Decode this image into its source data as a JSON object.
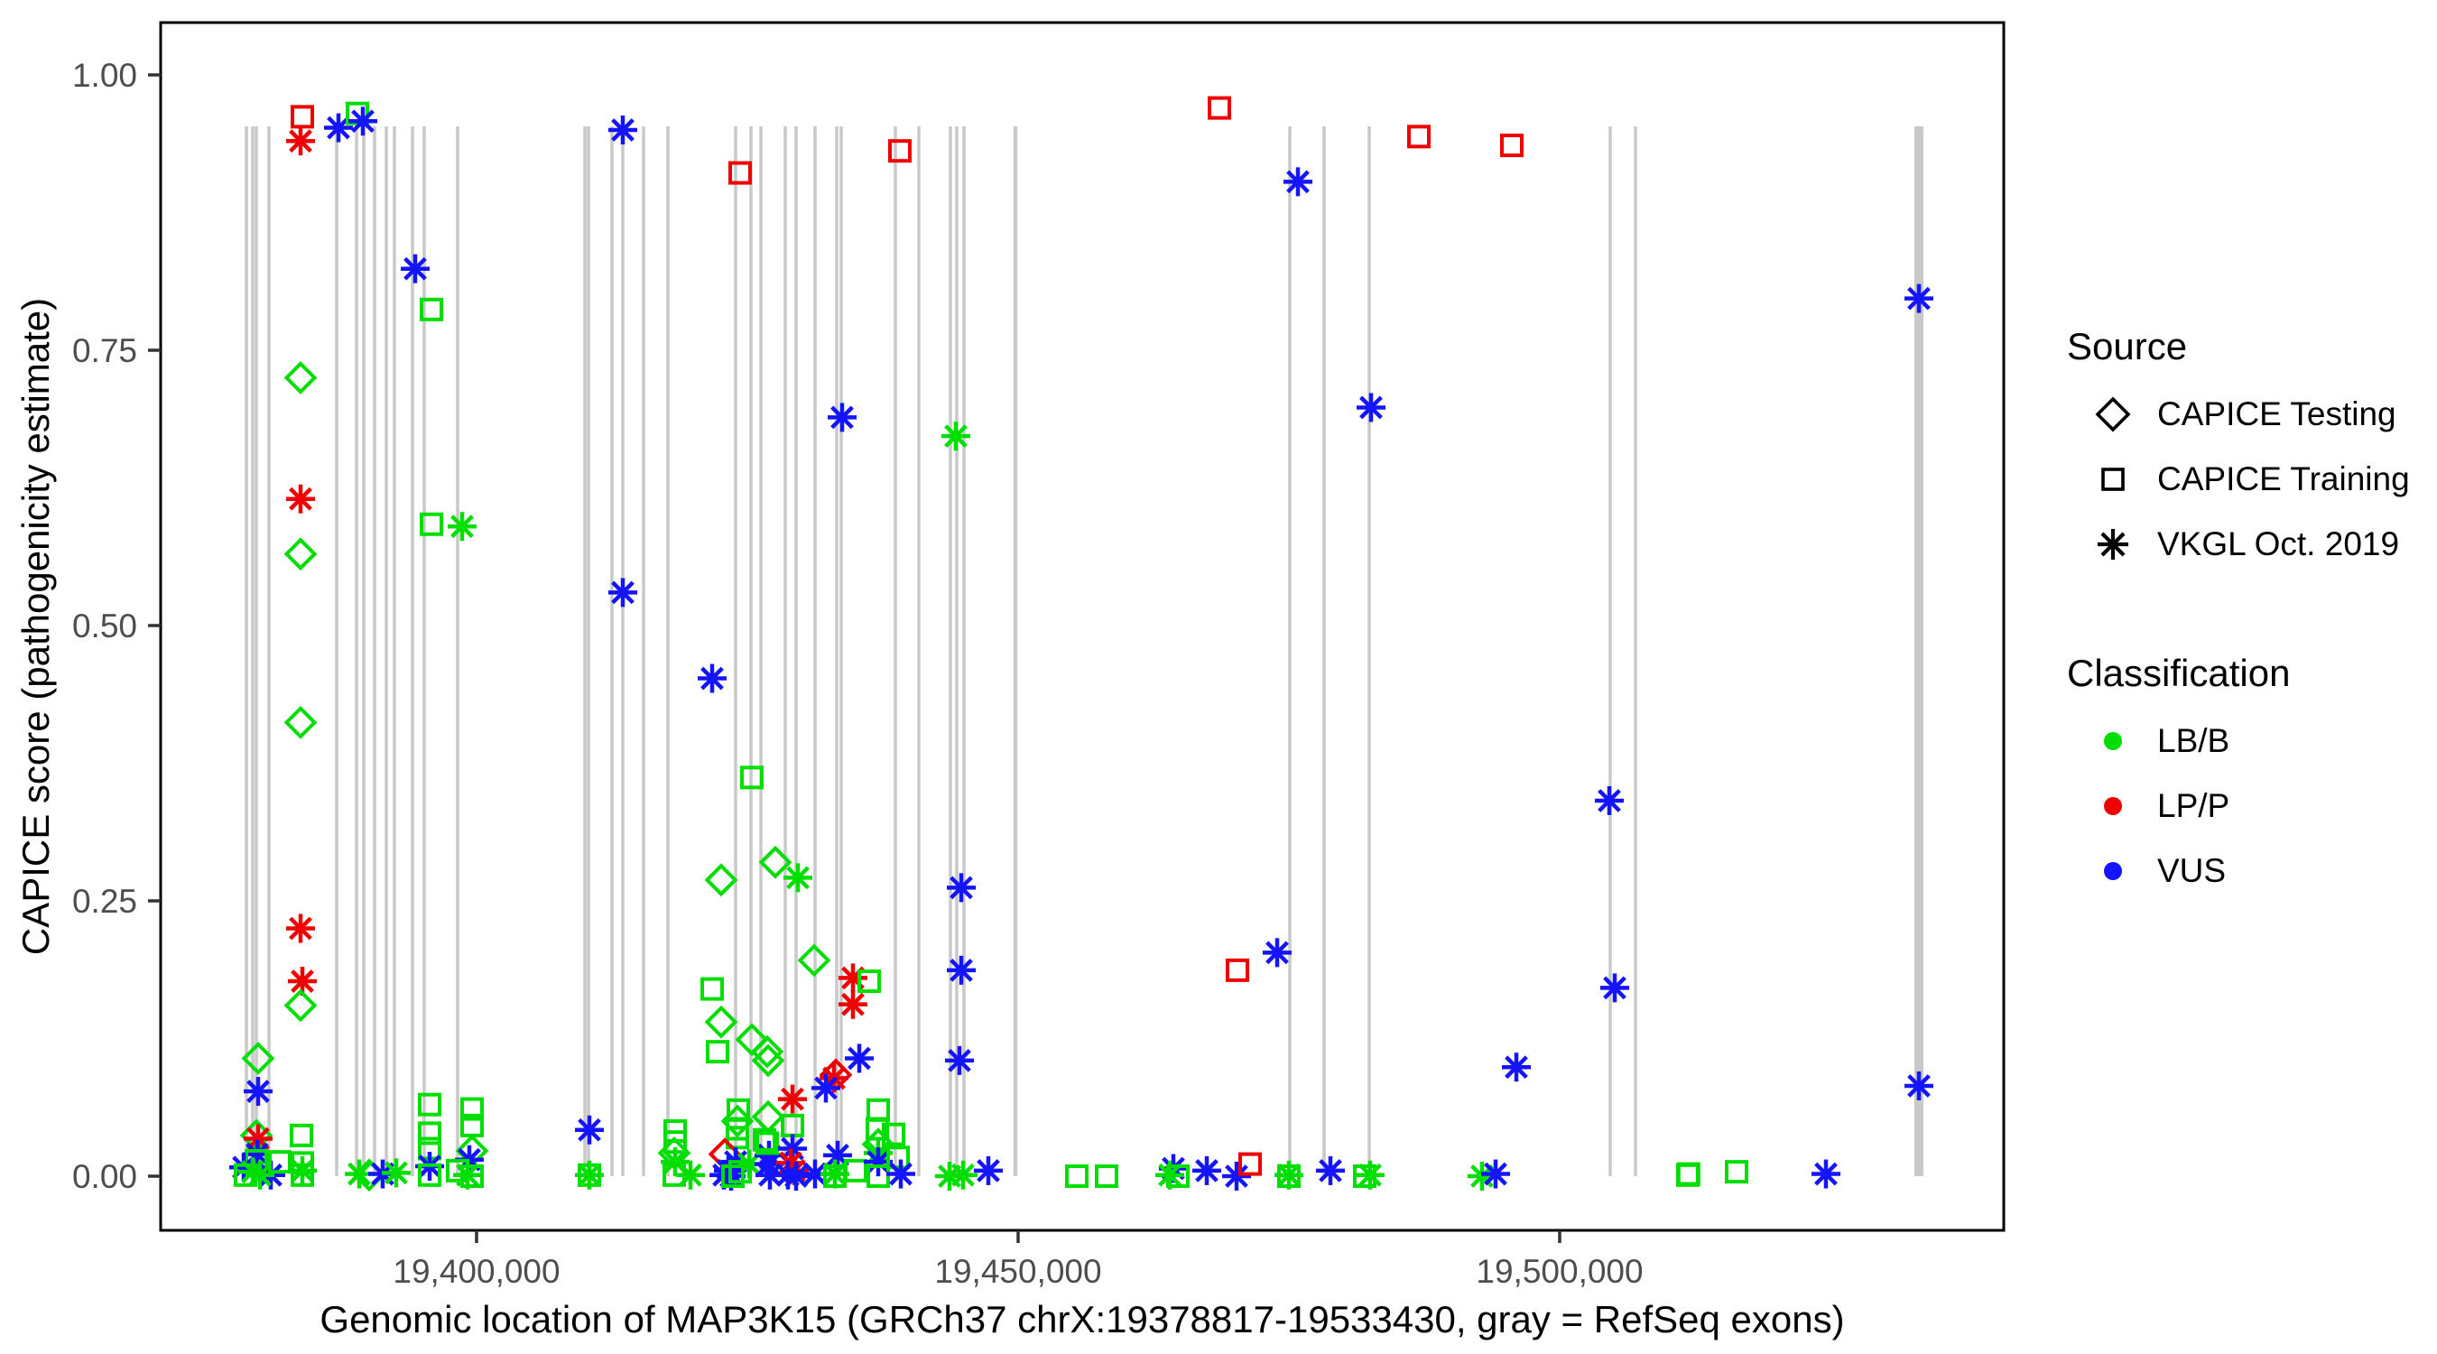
{
  "figure": {
    "background": "#ffffff"
  },
  "axes": {
    "x": {
      "title": "Genomic location of MAP3K15 (GRCh37 chrX:19378817-19533430, gray = RefSeq exons)",
      "ticks": [
        {
          "label": "19,400,000",
          "value": 19400000
        },
        {
          "label": "19,450,000",
          "value": 19450000
        },
        {
          "label": "19,500,000",
          "value": 19500000
        }
      ]
    },
    "y": {
      "title": "CAPICE score (pathogenicity estimate)",
      "ticks": [
        {
          "label": "0.00",
          "value": 0.0
        },
        {
          "label": "0.25",
          "value": 0.25
        },
        {
          "label": "0.50",
          "value": 0.5
        },
        {
          "label": "0.75",
          "value": 0.75
        },
        {
          "label": "1.00",
          "value": 1.0
        }
      ]
    }
  },
  "legend": {
    "source": {
      "title": "Source",
      "items": [
        {
          "label": "CAPICE Testing",
          "marker": "diamond"
        },
        {
          "label": "CAPICE Training",
          "marker": "square"
        },
        {
          "label": "VKGL Oct. 2019",
          "marker": "asterisk"
        }
      ]
    },
    "classification": {
      "title": "Classification",
      "items": [
        {
          "label": "LB/B",
          "color_key": "LB/B"
        },
        {
          "label": "LP/P",
          "color_key": "LP/P"
        },
        {
          "label": "VUS",
          "color_key": "VUS"
        }
      ]
    }
  },
  "colors": {
    "LB/B": "#00DE00",
    "LP/P": "#EE0000",
    "VUS": "#1414FF",
    "exon": "#C9C9C9",
    "tick_label": "#4D4D4D",
    "panel_border": "#000000"
  },
  "chart_data": {
    "type": "scatter",
    "title": "",
    "xlabel": "Genomic location of MAP3K15 (GRCh37 chrX:19378817-19533430, gray = RefSeq exons)",
    "ylabel": "CAPICE score (pathogenicity estimate)",
    "xlim": [
      19370800,
      19541000
    ],
    "ylim": [
      0,
      1
    ],
    "grid": false,
    "legend_position": "right",
    "marker_by_source": {
      "CAPICE Testing": "diamond",
      "CAPICE Training": "square",
      "VKGL Oct. 2019": "asterisk"
    },
    "source_codes": {
      "test": "CAPICE Testing",
      "train": "CAPICE Training",
      "vkgl": "VKGL Oct. 2019"
    },
    "exon_note": "gray vertical lines = RefSeq exons",
    "exons": [
      {
        "g": 19378750
      },
      {
        "g": 19379333
      },
      {
        "g": 19379667
      },
      {
        "g": 19380833
      },
      {
        "g": 19387083
      },
      {
        "g": 19388917
      },
      {
        "g": 19389583
      },
      {
        "g": 19390583
      },
      {
        "g": 19391667
      },
      {
        "g": 19392417
      },
      {
        "g": 19394083
      },
      {
        "g": 19395167
      },
      {
        "g": 19398250
      },
      {
        "g": 19410000
      },
      {
        "g": 19410333
      },
      {
        "g": 19412500
      },
      {
        "g": 19413500
      },
      {
        "g": 19415417
      },
      {
        "g": 19417667
      },
      {
        "g": 19423917
      },
      {
        "g": 19425333
      },
      {
        "g": 19426250
      },
      {
        "g": 19428500
      },
      {
        "g": 19429500
      },
      {
        "g": 19431250
      },
      {
        "g": 19433250
      },
      {
        "g": 19433667
      },
      {
        "g": 19438667
      },
      {
        "g": 19440833
      },
      {
        "g": 19443750
      },
      {
        "g": 19444333
      },
      {
        "g": 19445000
      },
      {
        "g": 19449750,
        "w": 4.5
      },
      {
        "g": 19475083
      },
      {
        "g": 19478250
      },
      {
        "g": 19482417
      },
      {
        "g": 19504667
      },
      {
        "g": 19507000
      },
      {
        "g": 19533167,
        "w": 10
      }
    ],
    "point_fields": [
      "source",
      "classification",
      "genomic_position",
      "capice_score"
    ],
    "points": [
      [
        "train",
        "LP/P",
        19383917,
        0.962
      ],
      [
        "vkgl",
        "LP/P",
        19383750,
        0.94
      ],
      [
        "vkgl",
        "VUS",
        19387250,
        0.952
      ],
      [
        "train",
        "LB/B",
        19389000,
        0.965
      ],
      [
        "vkgl",
        "VUS",
        19389500,
        0.958
      ],
      [
        "vkgl",
        "VUS",
        19394333,
        0.824
      ],
      [
        "train",
        "LB/B",
        19395833,
        0.787
      ],
      [
        "test",
        "LB/B",
        19383750,
        0.725
      ],
      [
        "vkgl",
        "LP/P",
        19383750,
        0.615
      ],
      [
        "test",
        "LB/B",
        19383750,
        0.565
      ],
      [
        "train",
        "LB/B",
        19395833,
        0.592
      ],
      [
        "vkgl",
        "LB/B",
        19398667,
        0.59
      ],
      [
        "test",
        "LB/B",
        19383750,
        0.412
      ],
      [
        "vkgl",
        "LP/P",
        19383750,
        0.225
      ],
      [
        "vkgl",
        "LP/P",
        19383917,
        0.177
      ],
      [
        "test",
        "LB/B",
        19383750,
        0.155
      ],
      [
        "test",
        "LB/B",
        19379833,
        0.107
      ],
      [
        "vkgl",
        "VUS",
        19379833,
        0.077
      ],
      [
        "test",
        "LB/B",
        19379667,
        0.037
      ],
      [
        "vkgl",
        "LP/P",
        19379833,
        0.034
      ],
      [
        "vkgl",
        "VUS",
        19379750,
        0.02
      ],
      [
        "train",
        "LB/B",
        19379667,
        0.014
      ],
      [
        "vkgl",
        "VUS",
        19378500,
        0.008
      ],
      [
        "vkgl",
        "LB/B",
        19379333,
        0.004
      ],
      [
        "vkgl",
        "VUS",
        19381000,
        0.001
      ],
      [
        "train",
        "LB/B",
        19378667,
        0.001
      ],
      [
        "vkgl",
        "LB/B",
        19380000,
        0.001
      ],
      [
        "train",
        "LB/B",
        19381833,
        0.013
      ],
      [
        "train",
        "LB/B",
        19383833,
        0.037
      ],
      [
        "train",
        "LB/B",
        19383917,
        0.012
      ],
      [
        "vkgl",
        "LB/B",
        19383917,
        0.005
      ],
      [
        "train",
        "LB/B",
        19383917,
        0.001
      ],
      [
        "vkgl",
        "LB/B",
        19389167,
        0.002
      ],
      [
        "test",
        "LB/B",
        19390083,
        0.001
      ],
      [
        "vkgl",
        "VUS",
        19391333,
        0.002
      ],
      [
        "vkgl",
        "LB/B",
        19392583,
        0.003
      ],
      [
        "train",
        "LB/B",
        19395667,
        0.065
      ],
      [
        "train",
        "LB/B",
        19395667,
        0.039
      ],
      [
        "train",
        "LB/B",
        19395667,
        0.025
      ],
      [
        "vkgl",
        "VUS",
        19395667,
        0.009
      ],
      [
        "train",
        "LB/B",
        19395667,
        0.001
      ],
      [
        "train",
        "LB/B",
        19399583,
        0.061
      ],
      [
        "train",
        "LB/B",
        19399583,
        0.046
      ],
      [
        "test",
        "LB/B",
        19399583,
        0.023
      ],
      [
        "vkgl",
        "VUS",
        19399333,
        0.015
      ],
      [
        "train",
        "LB/B",
        19398250,
        0.005
      ],
      [
        "vkgl",
        "LB/B",
        19399167,
        0.001
      ],
      [
        "train",
        "LB/B",
        19399583,
        0.0
      ],
      [
        "vkgl",
        "VUS",
        19410417,
        0.042
      ],
      [
        "train",
        "LB/B",
        19410417,
        0.001
      ],
      [
        "vkgl",
        "LB/B",
        19410417,
        0.001
      ],
      [
        "train",
        "LB/B",
        19418333,
        0.041
      ],
      [
        "train",
        "LB/B",
        19418333,
        0.031
      ],
      [
        "test",
        "LB/B",
        19418250,
        0.021
      ],
      [
        "vkgl",
        "LB/B",
        19418333,
        0.013
      ],
      [
        "train",
        "LB/B",
        19418250,
        0.001
      ],
      [
        "vkgl",
        "LB/B",
        19419750,
        0.001
      ],
      [
        "vkgl",
        "VUS",
        19413500,
        0.95
      ],
      [
        "vkgl",
        "VUS",
        19413500,
        0.53
      ],
      [
        "train",
        "LP/P",
        19424333,
        0.911
      ],
      [
        "train",
        "LP/P",
        19439083,
        0.931
      ],
      [
        "vkgl",
        "VUS",
        19433750,
        0.689
      ],
      [
        "vkgl",
        "LB/B",
        19444250,
        0.672
      ],
      [
        "vkgl",
        "VUS",
        19421750,
        0.452
      ],
      [
        "train",
        "LB/B",
        19425417,
        0.362
      ],
      [
        "test",
        "LB/B",
        19427583,
        0.285
      ],
      [
        "vkgl",
        "LB/B",
        19429667,
        0.271
      ],
      [
        "test",
        "LB/B",
        19422583,
        0.269
      ],
      [
        "test",
        "LB/B",
        19431167,
        0.196
      ],
      [
        "vkgl",
        "LP/P",
        19434750,
        0.18
      ],
      [
        "train",
        "LB/B",
        19436250,
        0.177
      ],
      [
        "train",
        "LB/B",
        19421750,
        0.17
      ],
      [
        "vkgl",
        "LP/P",
        19434750,
        0.156
      ],
      [
        "test",
        "LB/B",
        19422583,
        0.14
      ],
      [
        "test",
        "LB/B",
        19425417,
        0.124
      ],
      [
        "train",
        "LB/B",
        19422250,
        0.113
      ],
      [
        "test",
        "LB/B",
        19426833,
        0.113
      ],
      [
        "test",
        "LB/B",
        19426917,
        0.105
      ],
      [
        "train",
        "LB/B",
        19424167,
        0.06
      ],
      [
        "test",
        "LB/B",
        19424083,
        0.05
      ],
      [
        "train",
        "LB/B",
        19424083,
        0.043
      ],
      [
        "train",
        "LB/B",
        19424083,
        0.035
      ],
      [
        "test",
        "LP/P",
        19422917,
        0.02
      ],
      [
        "vkgl",
        "VUS",
        19423917,
        0.013
      ],
      [
        "vkgl",
        "LB/B",
        19425167,
        0.011
      ],
      [
        "vkgl",
        "VUS",
        19423250,
        0.005
      ],
      [
        "vkgl",
        "VUS",
        19422833,
        0.001
      ],
      [
        "vkgl",
        "VUS",
        19423500,
        0.0
      ],
      [
        "train",
        "LB/B",
        19424333,
        0.004
      ],
      [
        "train",
        "LB/B",
        19423667,
        0.0
      ],
      [
        "vkgl",
        "VUS",
        19427000,
        0.019
      ],
      [
        "vkgl",
        "VUS",
        19427000,
        0.011
      ],
      [
        "vkgl",
        "VUS",
        19427083,
        0.001
      ],
      [
        "train",
        "LB/B",
        19426583,
        0.033
      ],
      [
        "train",
        "LB/B",
        19426833,
        0.03
      ],
      [
        "test",
        "LB/B",
        19426917,
        0.054
      ],
      [
        "vkgl",
        "LP/P",
        19429167,
        0.07
      ],
      [
        "train",
        "LB/B",
        19429167,
        0.046
      ],
      [
        "vkgl",
        "VUS",
        19429167,
        0.025
      ],
      [
        "vkgl",
        "LP/P",
        19429000,
        0.012
      ],
      [
        "vkgl",
        "LP/P",
        19429333,
        0.005
      ],
      [
        "vkgl",
        "VUS",
        19428750,
        0.001
      ],
      [
        "vkgl",
        "VUS",
        19429500,
        0.0
      ],
      [
        "test",
        "LP/P",
        19433167,
        0.092
      ],
      [
        "vkgl",
        "LP/P",
        19433000,
        0.089
      ],
      [
        "vkgl",
        "VUS",
        19432250,
        0.08
      ],
      [
        "vkgl",
        "VUS",
        19435333,
        0.107
      ],
      [
        "vkgl",
        "VUS",
        19433333,
        0.019
      ],
      [
        "vkgl",
        "VUS",
        19431250,
        0.002
      ],
      [
        "vkgl",
        "LB/B",
        19433083,
        0.002
      ],
      [
        "train",
        "LB/B",
        19433083,
        0.0
      ],
      [
        "train",
        "LB/B",
        19435000,
        0.005
      ],
      [
        "train",
        "LB/B",
        19437083,
        0.06
      ],
      [
        "train",
        "LB/B",
        19437000,
        0.043
      ],
      [
        "train",
        "LB/B",
        19438500,
        0.038
      ],
      [
        "test",
        "LB/B",
        19437083,
        0.029
      ],
      [
        "vkgl",
        "LB/B",
        19437083,
        0.021
      ],
      [
        "vkgl",
        "VUS",
        19437083,
        0.013
      ],
      [
        "train",
        "LB/B",
        19438917,
        0.017
      ],
      [
        "train",
        "LB/B",
        19437083,
        0.0
      ],
      [
        "vkgl",
        "VUS",
        19439167,
        0.002
      ],
      [
        "vkgl",
        "VUS",
        19444583,
        0.105
      ],
      [
        "vkgl",
        "VUS",
        19444750,
        0.262
      ],
      [
        "vkgl",
        "VUS",
        19444750,
        0.187
      ],
      [
        "vkgl",
        "LB/B",
        19443667,
        0.0
      ],
      [
        "vkgl",
        "LB/B",
        19444917,
        0.001
      ],
      [
        "vkgl",
        "VUS",
        19447250,
        0.005
      ],
      [
        "train",
        "LB/B",
        19455417,
        0.0
      ],
      [
        "train",
        "LB/B",
        19458167,
        0.0
      ],
      [
        "vkgl",
        "VUS",
        19464333,
        0.007
      ],
      [
        "vkgl",
        "LB/B",
        19464000,
        0.001
      ],
      [
        "train",
        "LB/B",
        19464750,
        0.0
      ],
      [
        "vkgl",
        "VUS",
        19467417,
        0.005
      ],
      [
        "vkgl",
        "VUS",
        19470167,
        0.0
      ],
      [
        "train",
        "LP/P",
        19471417,
        0.011
      ],
      [
        "train",
        "LB/B",
        19475000,
        0.0
      ],
      [
        "vkgl",
        "LB/B",
        19475000,
        0.001
      ],
      [
        "vkgl",
        "VUS",
        19478833,
        0.005
      ],
      [
        "train",
        "LB/B",
        19482000,
        0.0
      ],
      [
        "vkgl",
        "LB/B",
        19482500,
        0.001
      ],
      [
        "vkgl",
        "LB/B",
        19492833,
        0.0
      ],
      [
        "vkgl",
        "VUS",
        19494083,
        0.002
      ],
      [
        "vkgl",
        "VUS",
        19496000,
        0.099
      ],
      [
        "train",
        "LB/B",
        19511833,
        0.001
      ],
      [
        "train",
        "LB/B",
        19511900,
        0.002
      ],
      [
        "train",
        "LB/B",
        19516333,
        0.004
      ],
      [
        "vkgl",
        "VUS",
        19524583,
        0.002
      ],
      [
        "vkgl",
        "VUS",
        19533167,
        0.082
      ],
      [
        "vkgl",
        "VUS",
        19533167,
        0.797
      ],
      [
        "train",
        "LP/P",
        19468583,
        0.97
      ],
      [
        "train",
        "LP/P",
        19487000,
        0.944
      ],
      [
        "train",
        "LP/P",
        19495583,
        0.936
      ],
      [
        "vkgl",
        "VUS",
        19475833,
        0.903
      ],
      [
        "vkgl",
        "VUS",
        19482583,
        0.698
      ],
      [
        "vkgl",
        "VUS",
        19504583,
        0.341
      ],
      [
        "vkgl",
        "VUS",
        19473917,
        0.203
      ],
      [
        "train",
        "LP/P",
        19470250,
        0.187
      ],
      [
        "vkgl",
        "VUS",
        19505083,
        0.171
      ]
    ]
  }
}
